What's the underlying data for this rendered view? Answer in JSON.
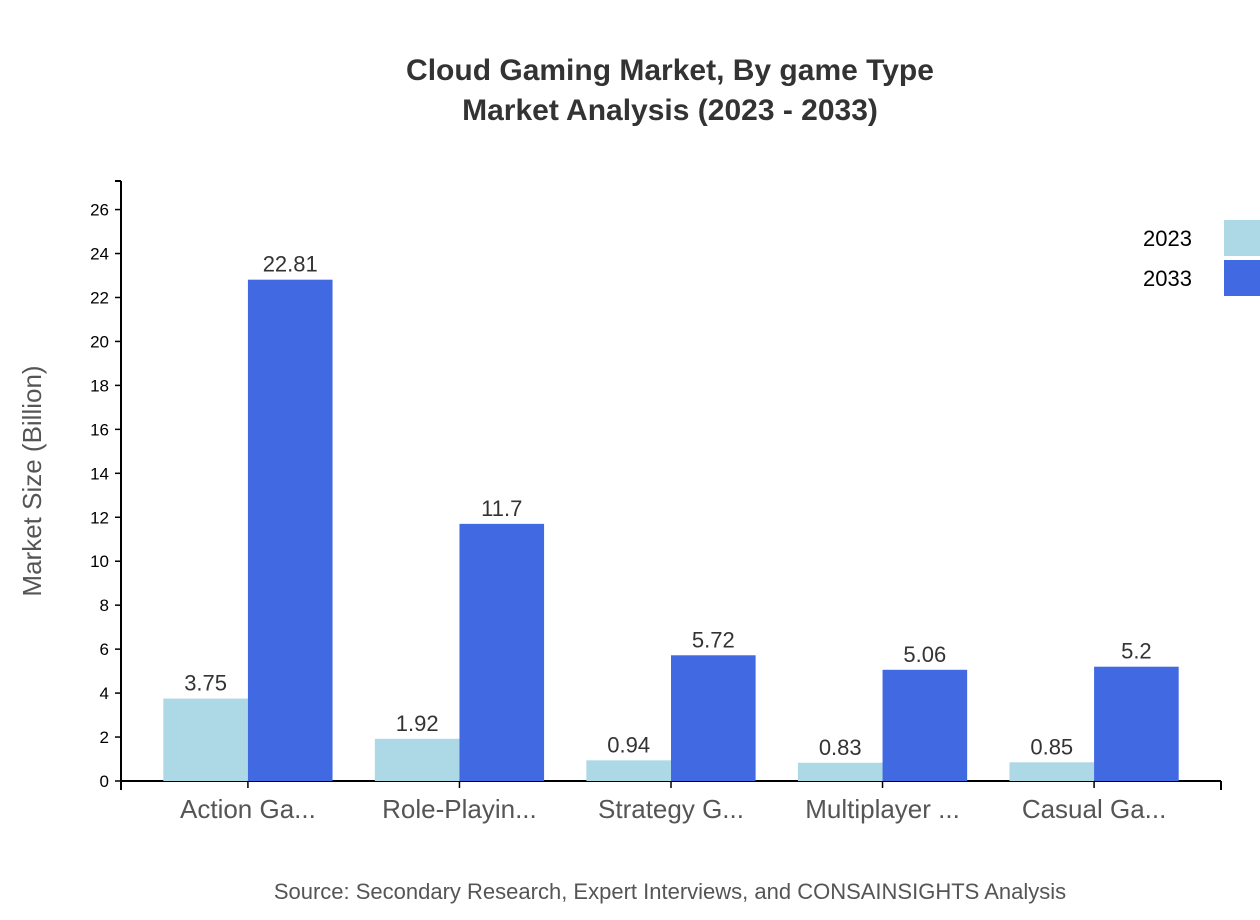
{
  "chart_data": {
    "type": "bar",
    "title": [
      "Cloud Gaming Market, By game Type",
      "Market Analysis (2023 - 2033)"
    ],
    "xlabel": "",
    "ylabel": "Market Size (Billion)",
    "ylim": [
      0,
      27.3
    ],
    "yticks": [
      0,
      2,
      4,
      6,
      8,
      10,
      12,
      14,
      16,
      18,
      20,
      22,
      24,
      26
    ],
    "categories": [
      "Action Ga...",
      "Role-Playin...",
      "Strategy G...",
      "Multiplayer ...",
      "Casual Ga..."
    ],
    "series": [
      {
        "name": "2023",
        "color": "#add8e6",
        "values": [
          3.75,
          1.92,
          0.94,
          0.83,
          0.85
        ]
      },
      {
        "name": "2033",
        "color": "#4169e1",
        "values": [
          22.81,
          11.7,
          5.72,
          5.06,
          5.2
        ]
      }
    ],
    "grid": false,
    "legend": "top-right",
    "source": "Source: Secondary Research, Expert Interviews, and CONSAINSIGHTS Analysis"
  }
}
